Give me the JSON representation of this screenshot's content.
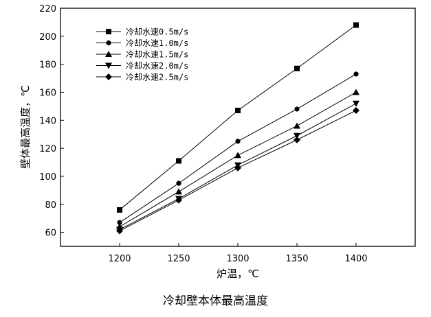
{
  "caption": "冷却壁本体最高温度",
  "chart_data": {
    "type": "line",
    "title": "",
    "xlabel": "炉温，℃",
    "ylabel": "壁体最高温度，℃",
    "xlim": [
      1150,
      1450
    ],
    "ylim": [
      50,
      220
    ],
    "xticks": [
      1200,
      1250,
      1300,
      1350,
      1400
    ],
    "yticks": [
      60,
      80,
      100,
      120,
      140,
      160,
      180,
      200,
      220
    ],
    "grid": false,
    "legend_position": "top-left",
    "x": [
      1200,
      1250,
      1300,
      1350,
      1400
    ],
    "series": [
      {
        "name": "冷却水速0.5m/s",
        "marker": "square",
        "values": [
          76,
          111,
          147,
          177,
          208
        ]
      },
      {
        "name": "冷却水速1.0m/s",
        "marker": "circle",
        "values": [
          67,
          95,
          125,
          148,
          173
        ]
      },
      {
        "name": "冷却水速1.5m/s",
        "marker": "triangle-up",
        "values": [
          64,
          89,
          115,
          136,
          160
        ]
      },
      {
        "name": "冷却水速2.0m/s",
        "marker": "triangle-down",
        "values": [
          62,
          84,
          108,
          129,
          152
        ]
      },
      {
        "name": "冷却水速2.5m/s",
        "marker": "diamond",
        "values": [
          61,
          83,
          106,
          126,
          147
        ]
      }
    ]
  }
}
